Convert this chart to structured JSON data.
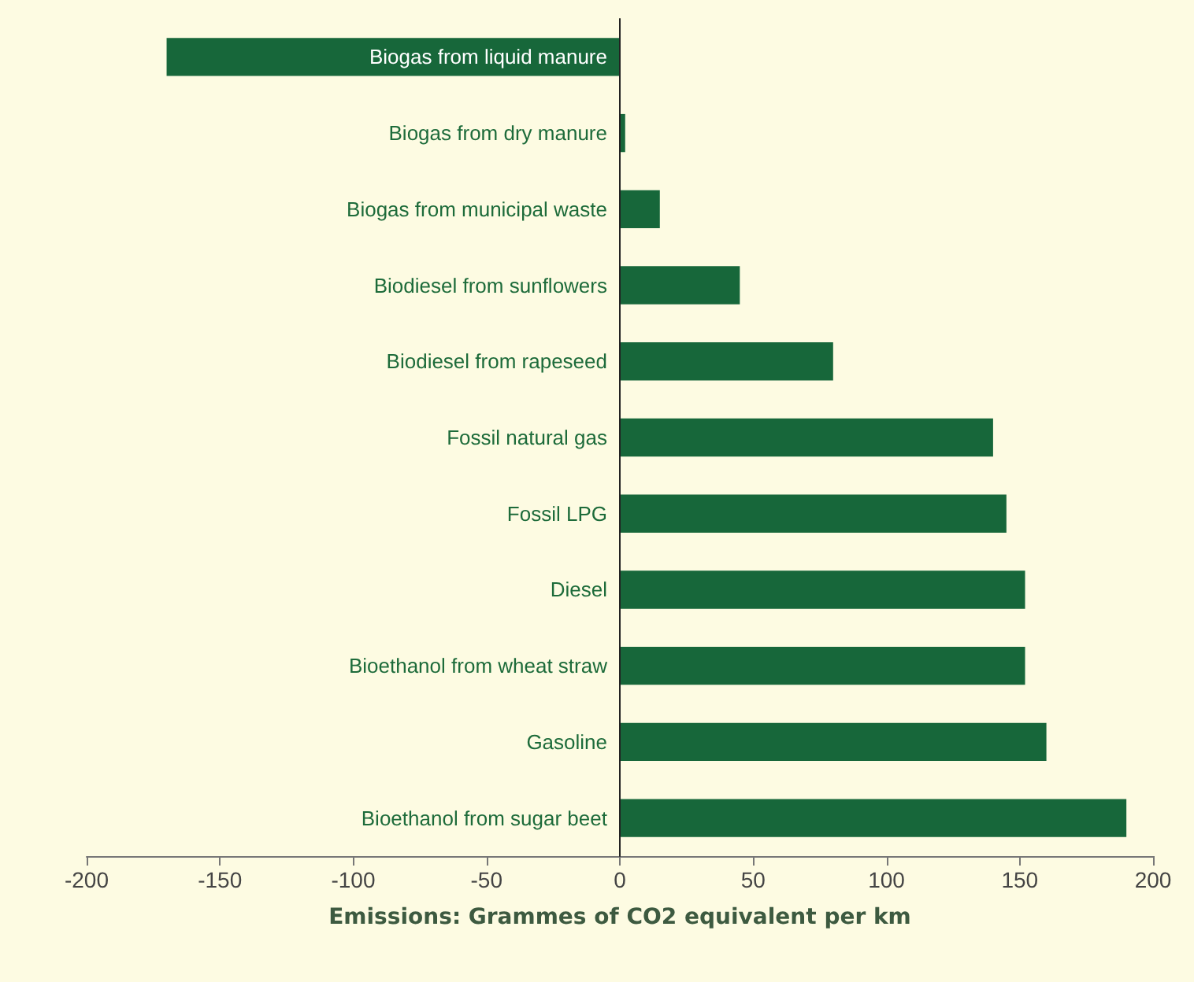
{
  "chart_data": {
    "type": "bar",
    "orientation": "horizontal",
    "xlabel": "Emissions: Grammes of CO2 equivalent per km",
    "categories": [
      "Biogas from liquid manure",
      "Biogas from dry manure",
      "Biogas from municipal waste",
      "Biodiesel from sunflowers",
      "Biodiesel from rapeseed",
      "Fossil natural gas",
      "Fossil LPG",
      "Diesel",
      "Bioethanol from wheat straw",
      "Gasoline",
      "Bioethanol from sugar beet"
    ],
    "values": [
      -170,
      2,
      15,
      45,
      80,
      140,
      145,
      152,
      152,
      160,
      190
    ],
    "color": "#17673a",
    "xlim": [
      -200,
      200
    ],
    "xticks": [
      -200,
      -150,
      -100,
      -50,
      0,
      50,
      100,
      150,
      200
    ],
    "grid": false
  }
}
